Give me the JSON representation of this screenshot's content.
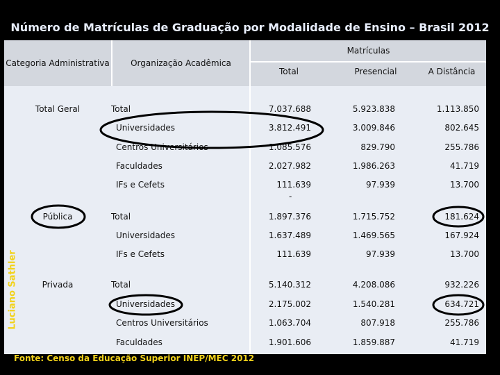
{
  "title": "Número de Matrículas de Graduação por Modalidade de Ensino – Brasil 2012",
  "author": "Luciano Sathler",
  "source": "Fonte: Censo da Educação Superior INEP/MEC 2012",
  "table": {
    "header": {
      "category": "Categoria Administrativa",
      "organization": "Organização Acadêmica",
      "group": "Matrículas",
      "columns": [
        "Total",
        "Presencial",
        "A Distância"
      ]
    },
    "rows": [
      [
        "Total Geral",
        "Total",
        "7.037.688",
        "5.923.838",
        "1.113.850"
      ],
      [
        "",
        "Universidades",
        "3.812.491",
        "3.009.846",
        "802.645"
      ],
      [
        "",
        "Centros Universitários",
        "1.085.576",
        "829.790",
        "255.786"
      ],
      [
        "",
        "Faculdades",
        "2.027.982",
        "1.986.263",
        "41.719"
      ],
      [
        "",
        "IFs e Cefets",
        "111.639",
        "97.939",
        "13.700"
      ],
      [
        "Pública",
        "Total",
        "1.897.376",
        "1.715.752",
        "181.624"
      ],
      [
        "",
        "Universidades",
        "1.637.489",
        "1.469.565",
        "167.924"
      ],
      [
        "",
        "IFs e Cefets",
        "111.639",
        "97.939",
        "13.700"
      ],
      [
        "Privada",
        "Total",
        "5.140.312",
        "4.208.086",
        "932.226"
      ],
      [
        "",
        "Universidades",
        "2.175.002",
        "1.540.281",
        "634.721"
      ],
      [
        "",
        "Centros Universitários",
        "1.063.704",
        "807.918",
        "255.786"
      ],
      [
        "",
        "Faculdades",
        "1.901.606",
        "1.859.887",
        "41.719"
      ]
    ],
    "stray_mark": "-"
  }
}
